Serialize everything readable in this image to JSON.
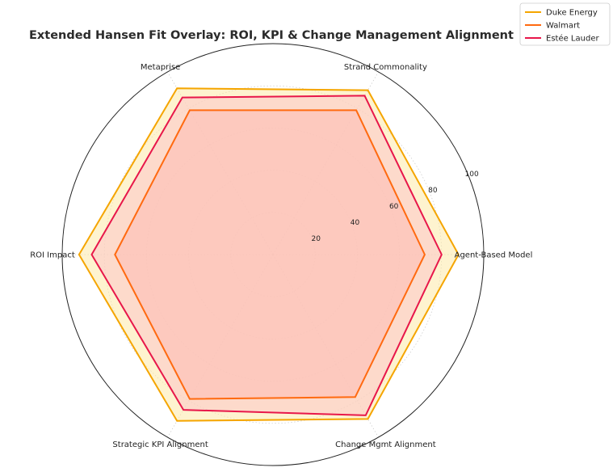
{
  "chart_data": {
    "type": "radar",
    "title": "Extended Hansen Fit Overlay: ROI, KPI & Change Management Alignment",
    "categories": [
      "Agent-Based Model",
      "Strand Commonality",
      "Metaprise",
      "ROI Impact",
      "Strategic KPI Alignment",
      "Change Mgmt Alignment"
    ],
    "rlim": [
      0,
      100
    ],
    "rticks": [
      20,
      40,
      60,
      80,
      100
    ],
    "grid": true,
    "legend_position": "top-right",
    "series": [
      {
        "name": "Duke Energy",
        "color": "#f5a500",
        "fill": "#fde9a8",
        "values": [
          88,
          90,
          91,
          92,
          91,
          90
        ]
      },
      {
        "name": "Walmart",
        "color": "#ff6a10",
        "fill": "#ffb09a",
        "values": [
          72,
          79,
          79,
          75,
          79,
          78
        ]
      },
      {
        "name": "Estée Lauder",
        "color": "#e8174a",
        "fill": "#fbc4c8",
        "values": [
          80,
          87,
          86,
          86,
          85,
          88
        ]
      }
    ]
  }
}
